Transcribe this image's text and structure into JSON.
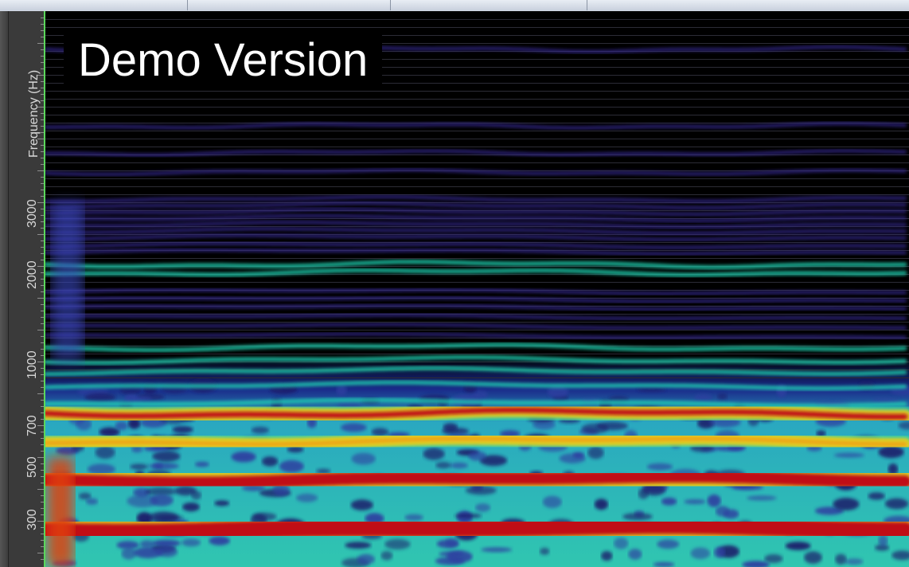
{
  "watermark": {
    "text": "Demo Version"
  },
  "frequency_axis": {
    "title": "Frequency (Hz)",
    "ticks": [
      {
        "label": "300",
        "value": 300
      },
      {
        "label": "500",
        "value": 500
      },
      {
        "label": "700",
        "value": 700
      },
      {
        "label": "1000",
        "value": 1000
      },
      {
        "label": "2000",
        "value": 2000
      },
      {
        "label": "3000",
        "value": 3000
      }
    ]
  },
  "colors": {
    "background": "#000000",
    "ruler": "#3a3a3a",
    "cursor": "#5bd75b",
    "strong_band": "#c00a12",
    "medium_band": "#e6d21a",
    "weak_band": "#22d6b4",
    "faint_band": "#3a2a9a"
  }
}
